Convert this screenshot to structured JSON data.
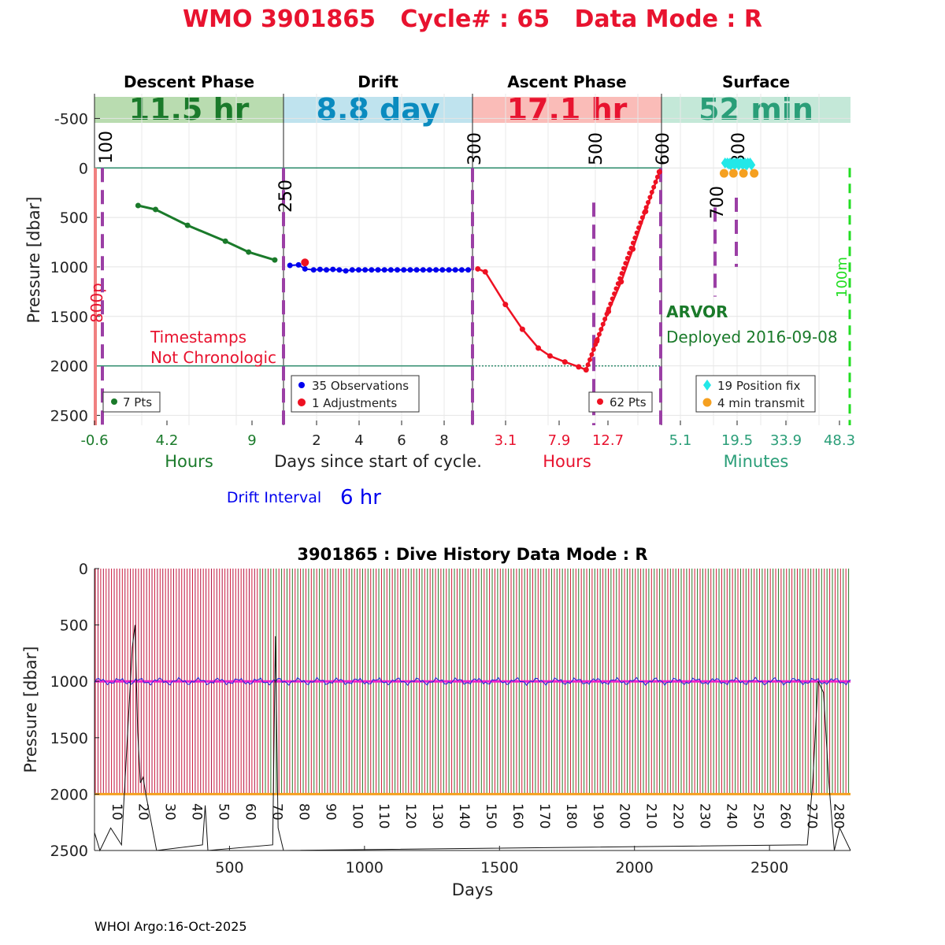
{
  "title": "WMO 3901865   Cycle# : 65   Data Mode : R",
  "colors": {
    "title": "#e8132f",
    "descent": "#1a7a2a",
    "descent_bg": "#b9dcb0",
    "drift": "#0a8bbf",
    "drift_bg": "#bfe3ee",
    "ascent": "#e8132f",
    "ascent_bg": "#fabcb8",
    "surface": "#2a9e78",
    "surface_bg": "#c4e8d8",
    "purple": "#9b3fa5",
    "gridline": "#2a8a6a"
  },
  "phases": [
    {
      "name": "Descent Phase",
      "duration": "11.5 hr"
    },
    {
      "name": "Drift",
      "duration": "8.8 day"
    },
    {
      "name": "Ascent Phase",
      "duration": "17.1 hr"
    },
    {
      "name": "Surface",
      "duration": "52 min"
    }
  ],
  "top_chart": {
    "ylabel": "Pressure [dbar]",
    "yticks": [
      "-500",
      "0",
      "500",
      "1000",
      "1500",
      "2000",
      "2500"
    ],
    "ylim": [
      -750,
      2600
    ],
    "descent_xticks": [
      "-0.6",
      "4.2",
      "9"
    ],
    "drift_xticks": [
      "2",
      "4",
      "6",
      "8"
    ],
    "ascent_xticks": [
      "3.1",
      "7.9",
      "12.7"
    ],
    "surface_xticks": [
      "5.1",
      "19.5",
      "33.9",
      "48.3"
    ],
    "xlabels": [
      "Hours",
      "Days since start of cycle.",
      "Hours",
      "Minutes"
    ],
    "vline_labels": [
      "100",
      "250",
      "300",
      "500",
      "600",
      "700",
      "800"
    ],
    "left_red_label": "800p",
    "right_green_label": "100m",
    "timestamp_warning": [
      "Timestamps",
      "Not Chronologic"
    ],
    "float_type": "ARVOR",
    "deployed": "Deployed 2016-09-08",
    "legend_descent": "7 Pts",
    "legend_drift": [
      "35 Observations",
      "1 Adjustments"
    ],
    "legend_ascent": "62 Pts",
    "legend_surface": [
      "19 Position fix",
      "4 min transmit"
    ],
    "drift_interval_label": "Drift Interval",
    "drift_interval_value": "6 hr"
  },
  "chart_data": [
    {
      "type": "line",
      "title": "Descent Phase",
      "xlabel": "Hours",
      "ylabel": "Pressure [dbar]",
      "x": [
        1.8,
        3.0,
        5.2,
        7.8,
        9.4,
        11.2
      ],
      "y": [
        380,
        420,
        580,
        740,
        850,
        930
      ],
      "xlim": [
        -1.2,
        11.8
      ],
      "ylim": [
        -750,
        2600
      ]
    },
    {
      "type": "line",
      "title": "Drift",
      "xlabel": "Days since start of cycle.",
      "ylabel": "Pressure [dbar]",
      "x": [
        0.5,
        0.9,
        1.2,
        1.6,
        1.9,
        2.2,
        2.5,
        2.8,
        3.1,
        3.4,
        3.7,
        4.0,
        4.3,
        4.6,
        4.9,
        5.2,
        5.5,
        5.8,
        6.1,
        6.4,
        6.7,
        7.0,
        7.3,
        7.6,
        7.9,
        8.2,
        8.5,
        8.8
      ],
      "y": [
        985,
        980,
        1020,
        1030,
        1025,
        1030,
        1025,
        1030,
        1040,
        1030,
        1030,
        1030,
        1030,
        1030,
        1030,
        1030,
        1030,
        1030,
        1030,
        1030,
        1030,
        1030,
        1030,
        1030,
        1030,
        1030,
        1030,
        1030
      ],
      "adjustment": {
        "x": 1.2,
        "y": 955
      },
      "xlim": [
        0.2,
        9.0
      ],
      "ylim": [
        -750,
        2600
      ]
    },
    {
      "type": "line",
      "title": "Ascent Phase",
      "xlabel": "Hours",
      "ylabel": "Pressure [dbar]",
      "x": [
        0.0,
        0.7,
        2.6,
        4.2,
        5.7,
        6.8,
        8.2,
        9.5,
        10.2,
        11.2,
        12.3,
        13.5,
        14.6,
        15.8,
        17.1
      ],
      "y": [
        1020,
        1050,
        1380,
        1630,
        1820,
        1900,
        1960,
        2010,
        2040,
        1750,
        1450,
        1150,
        820,
        440,
        40
      ],
      "xlim": [
        -0.5,
        17.3
      ],
      "ylim": [
        -750,
        2600
      ]
    },
    {
      "type": "scatter",
      "title": "Surface",
      "xlabel": "Minutes",
      "ylabel": "Pressure [dbar]",
      "series": [
        {
          "name": "19 Position fix",
          "x": [
            14.5,
            15.2,
            16.0,
            16.8,
            17.5,
            18.2,
            19.0,
            19.7,
            20.5,
            21.3,
            22.0,
            16.2,
            17.4,
            18.6,
            19.8,
            21.0,
            22.4,
            15.6,
            20.6
          ],
          "y": [
            -50,
            -50,
            -50,
            -50,
            -50,
            -50,
            -50,
            -50,
            -50,
            -50,
            -50,
            -30,
            -30,
            -30,
            -30,
            -30,
            -30,
            -40,
            -40
          ]
        },
        {
          "name": "4 min transmit",
          "x": [
            14.2,
            17.0,
            20.0,
            23.2
          ],
          "y": [
            55,
            55,
            55,
            55
          ]
        }
      ],
      "xlim": [
        -4.5,
        52.0
      ],
      "ylim": [
        -750,
        2600
      ]
    },
    {
      "type": "line",
      "title": "3901865 : Dive History      Data Mode : R",
      "xlabel": "Days",
      "ylabel": "Pressure [dbar]",
      "xlim": [
        0,
        2800
      ],
      "ylim": [
        0,
        2500
      ],
      "xticks": [
        "500",
        "1000",
        "1500",
        "2000",
        "2500"
      ],
      "yticks": [
        "0",
        "500",
        "1000",
        "1500",
        "2000",
        "2500"
      ],
      "cycle_labels": [
        "10",
        "20",
        "30",
        "40",
        "50",
        "60",
        "70",
        "80",
        "90",
        "100",
        "110",
        "120",
        "130",
        "140",
        "150",
        "160",
        "170",
        "180",
        "190",
        "200",
        "210",
        "220",
        "230",
        "240",
        "250",
        "260",
        "270",
        "280"
      ],
      "cycles": 280,
      "drift_pressure": 1000,
      "profile_pressure": 2000,
      "date_line": "WHOI Argo:16-Oct-2025"
    }
  ]
}
